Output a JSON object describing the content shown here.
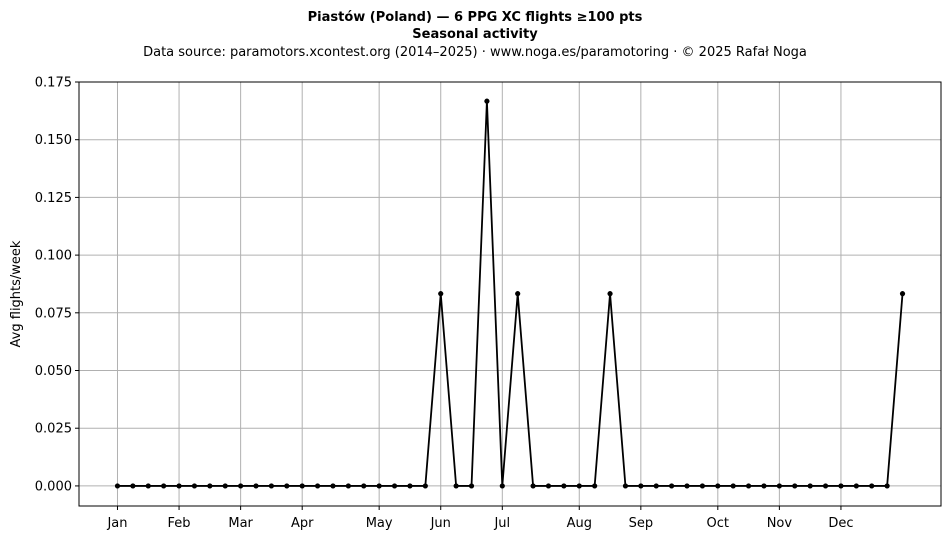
{
  "chart_data": {
    "type": "line",
    "title": "Piastów (Poland)  —  6 PPG XC flights ≥100 pts",
    "subtitle": "Seasonal activity",
    "source": "Data source: paramotors.xcontest.org (2014–2025)  ·  www.noga.es/paramotoring  ·  © 2025 Rafał Noga",
    "xlabel": "",
    "ylabel": "Avg flights/week",
    "grid": true,
    "xlim": [
      -2.5,
      53.5
    ],
    "ylim": [
      -0.0087,
      0.175
    ],
    "x_ticks": [
      {
        "label": "Jan",
        "x": 0
      },
      {
        "label": "Feb",
        "x": 4
      },
      {
        "label": "Mar",
        "x": 8
      },
      {
        "label": "Apr",
        "x": 12
      },
      {
        "label": "May",
        "x": 17
      },
      {
        "label": "Jun",
        "x": 21
      },
      {
        "label": "Jul",
        "x": 25
      },
      {
        "label": "Aug",
        "x": 30
      },
      {
        "label": "Sep",
        "x": 34
      },
      {
        "label": "Oct",
        "x": 39
      },
      {
        "label": "Nov",
        "x": 43
      },
      {
        "label": "Dec",
        "x": 47
      }
    ],
    "y_ticks": [
      "0.000",
      "0.025",
      "0.050",
      "0.075",
      "0.100",
      "0.125",
      "0.150",
      "0.175"
    ],
    "y_tick_values": [
      0,
      0.025,
      0.05,
      0.075,
      0.1,
      0.125,
      0.15,
      0.175
    ],
    "series": [
      {
        "name": "",
        "color": "#000000",
        "x": [
          0,
          1,
          2,
          3,
          4,
          5,
          6,
          7,
          8,
          9,
          10,
          11,
          12,
          13,
          14,
          15,
          16,
          17,
          18,
          19,
          20,
          21,
          22,
          23,
          24,
          25,
          26,
          27,
          28,
          29,
          30,
          31,
          32,
          33,
          34,
          35,
          36,
          37,
          38,
          39,
          40,
          41,
          42,
          43,
          44,
          45,
          46,
          47,
          48,
          49,
          50,
          51
        ],
        "values": [
          0,
          0,
          0,
          0,
          0,
          0,
          0,
          0,
          0,
          0,
          0,
          0,
          0,
          0,
          0,
          0,
          0,
          0,
          0,
          0,
          0,
          0.0833,
          0,
          0,
          0.1667,
          0,
          0.0833,
          0,
          0,
          0,
          0,
          0,
          0.0833,
          0,
          0,
          0,
          0,
          0,
          0,
          0,
          0,
          0,
          0,
          0,
          0,
          0,
          0,
          0,
          0,
          0,
          0,
          0.0833
        ]
      }
    ]
  }
}
